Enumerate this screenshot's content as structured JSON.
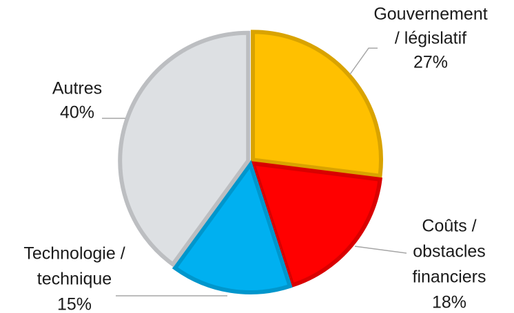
{
  "chart_data": {
    "type": "pie",
    "categories": [
      [
        "Gouvernement",
        "/ législatif"
      ],
      [
        "Coûts /",
        "obstacles",
        "financiers"
      ],
      [
        "Technologie /",
        "technique"
      ],
      [
        "Autres"
      ]
    ],
    "values": [
      27,
      18,
      15,
      40
    ],
    "value_labels": [
      "27%",
      "18%",
      "15%",
      "40%"
    ],
    "colors": [
      "#FFC000",
      "#FF0000",
      "#00B0F0",
      "#DDE0E3"
    ]
  }
}
